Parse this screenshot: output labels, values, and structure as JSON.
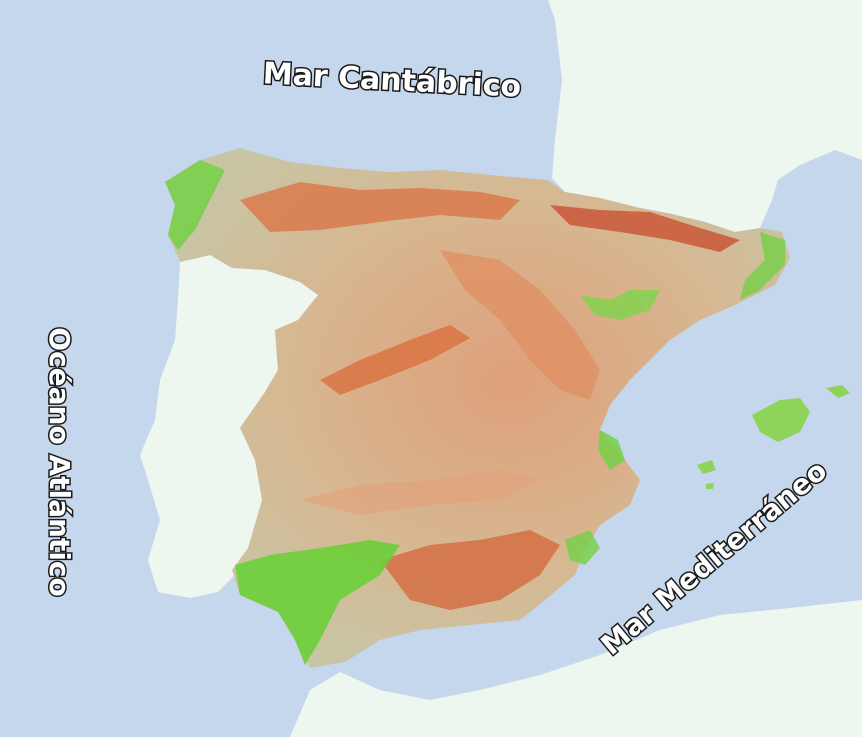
{
  "labels": {
    "cantabrico": "Mar Cantábrico",
    "atlantico": "Océano Atlántico",
    "mediterraneo": "Mar Mediterráneo"
  },
  "colors": {
    "sea": "#c4d7ec",
    "foreign_land": "#eef6f0",
    "lowland_green": "#6ccf3a",
    "plain": "#c9c3a3",
    "plateau": "#dcb08a",
    "highland": "#e3895a",
    "mountain": "#d0603a"
  }
}
